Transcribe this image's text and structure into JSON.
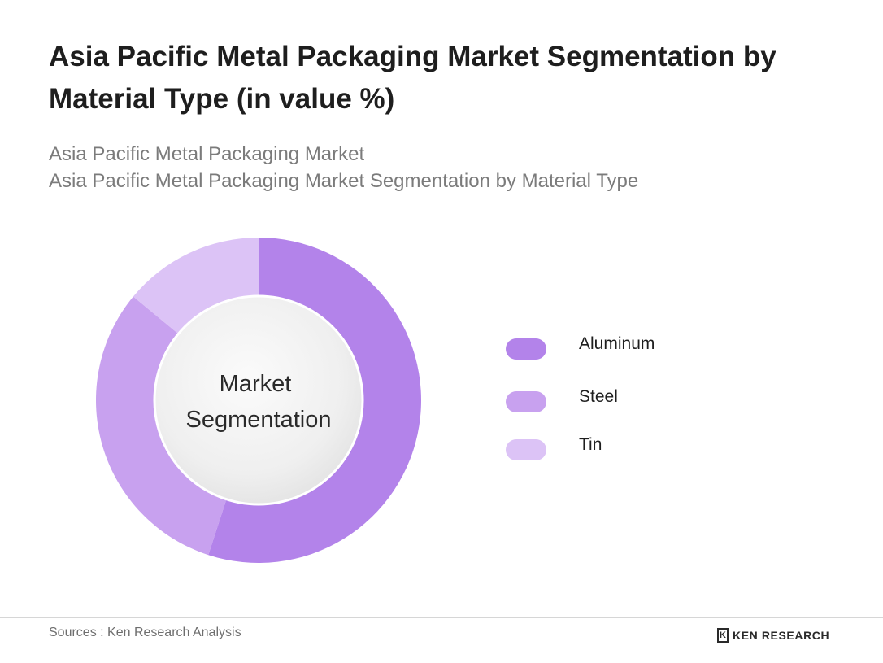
{
  "header": {
    "title": "Asia Pacific Metal Packaging Market Segmentation by Material Type (in value %)",
    "breadcrumb_line1": "Asia Pacific Metal Packaging Market",
    "breadcrumb_line2": "Asia Pacific Metal Packaging Market Segmentation by Material Type"
  },
  "chart_data": {
    "type": "pie",
    "variant": "donut",
    "center_label": [
      "Market",
      "Segmentation"
    ],
    "categories": [
      "Aluminum",
      "Steel",
      "Tin"
    ],
    "values": [
      55,
      31,
      14
    ],
    "unit": "%",
    "colors": [
      "#b383ea",
      "#c8a1ef",
      "#dcc3f6"
    ],
    "start_angle_deg": 0,
    "legend_position": "right"
  },
  "legend": {
    "items": [
      {
        "label": "Aluminum",
        "color": "#b383ea"
      },
      {
        "label": "Steel",
        "color": "#c8a1ef"
      },
      {
        "label": "Tin",
        "color": "#dcc3f6"
      }
    ]
  },
  "footer": {
    "sources": "Sources : Ken Research Analysis",
    "logo_mark": "K",
    "logo_text": "KEN RESEARCH"
  }
}
